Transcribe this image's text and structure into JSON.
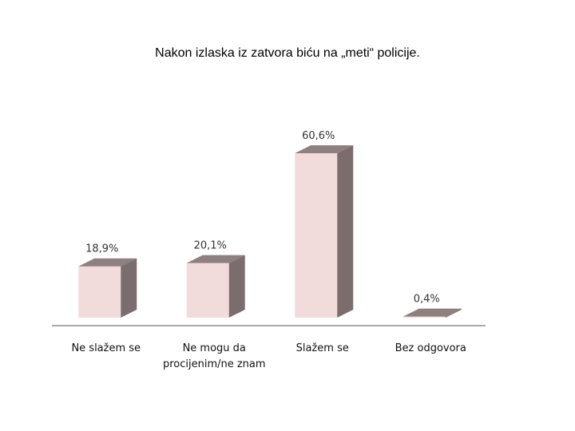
{
  "chart_data": {
    "type": "bar",
    "title": "Nakon izlaska iz zatvora biću na „meti“ policije.",
    "categories": [
      "Ne slažem se",
      "Ne mogu da procijenim/ne znam",
      "Slažem se",
      "Bez odgovora"
    ],
    "values": [
      18.9,
      20.1,
      60.6,
      0.4
    ],
    "data_labels": [
      "18,9%",
      "20,1%",
      "60,6%",
      "0,4%"
    ],
    "xlabel": "",
    "ylabel": "",
    "ylim": [
      0,
      70
    ],
    "grid": false,
    "legend": "none",
    "colors": {
      "front": "#f2dcdb",
      "side": "#7b6d6e",
      "top": "#8e7f80",
      "axis": "#555555"
    }
  }
}
